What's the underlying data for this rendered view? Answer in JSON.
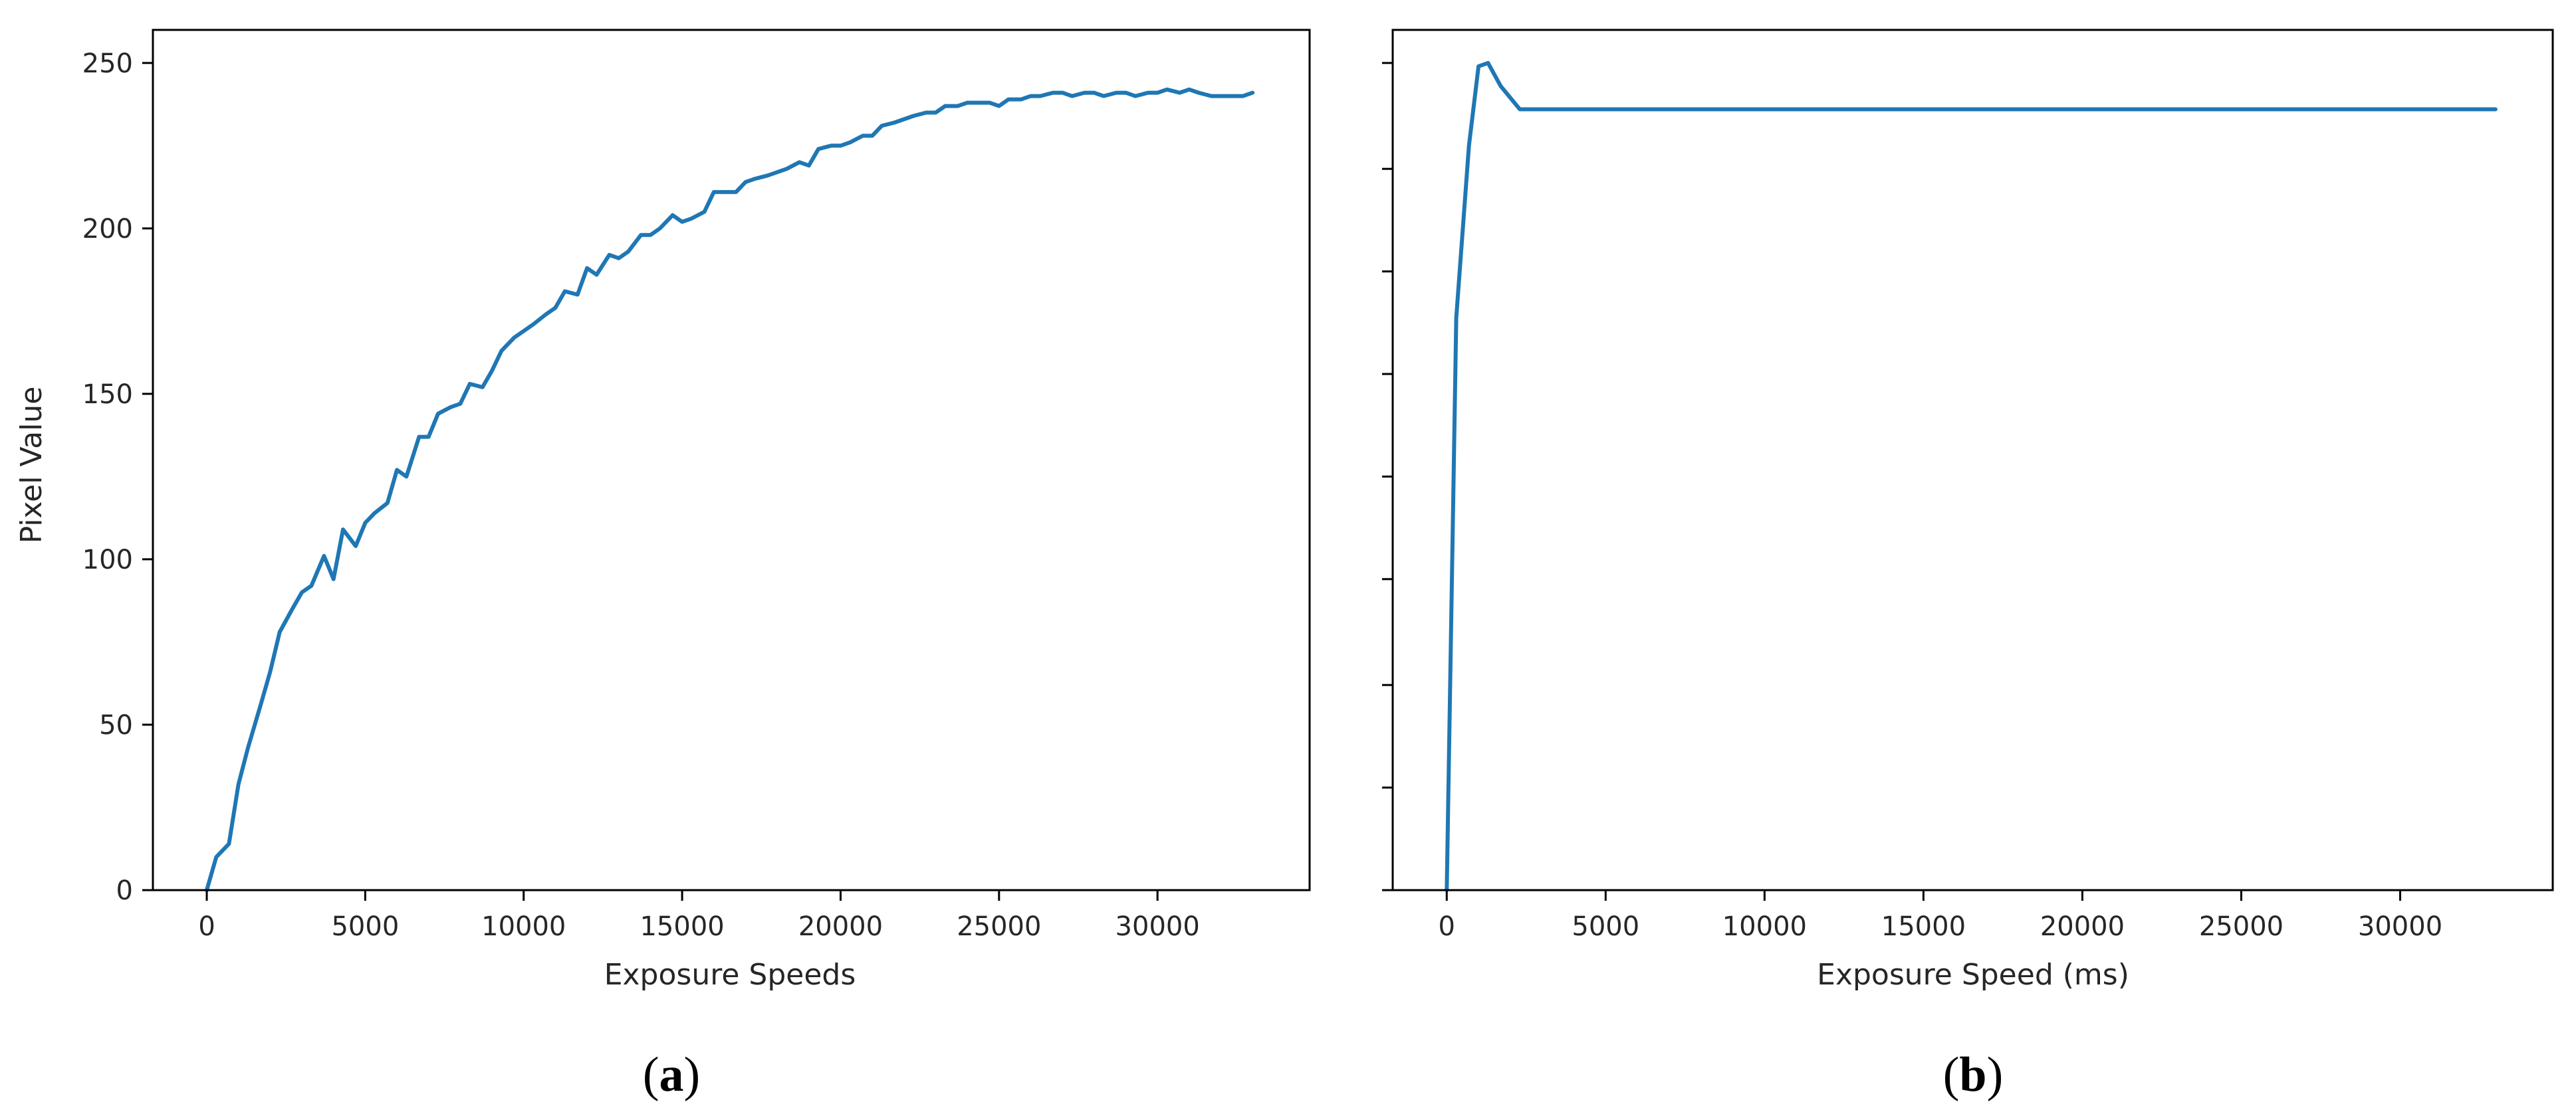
{
  "colors": {
    "series": "#1f77b4",
    "frame": "#000000",
    "text": "#262626"
  },
  "chart_data": [
    {
      "type": "line",
      "panel_label": "a",
      "xlabel": "Exposure Speeds",
      "ylabel": "Pixel Value",
      "xlim": [
        -1700,
        34800
      ],
      "ylim": [
        0,
        260
      ],
      "xticks": [
        0,
        5000,
        10000,
        15000,
        20000,
        25000,
        30000
      ],
      "yticks": [
        0,
        50,
        100,
        150,
        200,
        250
      ],
      "show_yticklabels": true,
      "grid": false,
      "x": [
        0,
        300,
        700,
        1000,
        1300,
        1700,
        2000,
        2300,
        2700,
        3000,
        3300,
        3700,
        4000,
        4300,
        4700,
        5000,
        5300,
        5700,
        6000,
        6300,
        6700,
        7000,
        7300,
        7700,
        8000,
        8300,
        8700,
        9000,
        9300,
        9700,
        10000,
        10300,
        10700,
        11000,
        11300,
        11700,
        12000,
        12300,
        12700,
        13000,
        13300,
        13700,
        14000,
        14300,
        14700,
        15000,
        15300,
        15700,
        16000,
        16300,
        16700,
        17000,
        17300,
        17700,
        18000,
        18300,
        18700,
        19000,
        19300,
        19700,
        20000,
        20300,
        20700,
        21000,
        21300,
        21700,
        22000,
        22300,
        22700,
        23000,
        23300,
        23700,
        24000,
        24300,
        24700,
        25000,
        25300,
        25700,
        26000,
        26300,
        26700,
        27000,
        27300,
        27700,
        28000,
        28300,
        28700,
        29000,
        29300,
        29700,
        30000,
        30300,
        30700,
        31000,
        31300,
        31700,
        32000,
        32300,
        32700,
        33000
      ],
      "series": [
        {
          "values": [
            0,
            10,
            14,
            32,
            43,
            56,
            66,
            78,
            85,
            90,
            92,
            101,
            94,
            109,
            104,
            111,
            114,
            117,
            127,
            125,
            137,
            137,
            144,
            146,
            147,
            153,
            152,
            157,
            163,
            167,
            169,
            171,
            174,
            176,
            181,
            180,
            188,
            186,
            192,
            191,
            193,
            198,
            198,
            200,
            204,
            202,
            203,
            205,
            211,
            211,
            211,
            214,
            215,
            216,
            217,
            218,
            220,
            219,
            224,
            225,
            225,
            226,
            228,
            228,
            231,
            232,
            233,
            234,
            235,
            235,
            237,
            237,
            238,
            238,
            238,
            237,
            239,
            239,
            240,
            240,
            241,
            241,
            240,
            241,
            241,
            240,
            241,
            241,
            240,
            241,
            241,
            242,
            241,
            242,
            241,
            240,
            240,
            240,
            240,
            241
          ]
        }
      ]
    },
    {
      "type": "line",
      "panel_label": "b",
      "xlabel": "Exposure Speed (ms)",
      "ylabel": "",
      "xlim": [
        -1700,
        34800
      ],
      "ylim": [
        0,
        260
      ],
      "xticks": [
        0,
        5000,
        10000,
        15000,
        20000,
        25000,
        30000
      ],
      "yticks": [
        0,
        31,
        62,
        94,
        125,
        156,
        187,
        218,
        250
      ],
      "show_yticklabels": false,
      "grid": false,
      "x": [
        0,
        300,
        700,
        1000,
        1300,
        1700,
        2300,
        2700,
        33000
      ],
      "series": [
        {
          "values": [
            0,
            173,
            225,
            249,
            250,
            243,
            236,
            236,
            236
          ]
        }
      ]
    }
  ]
}
